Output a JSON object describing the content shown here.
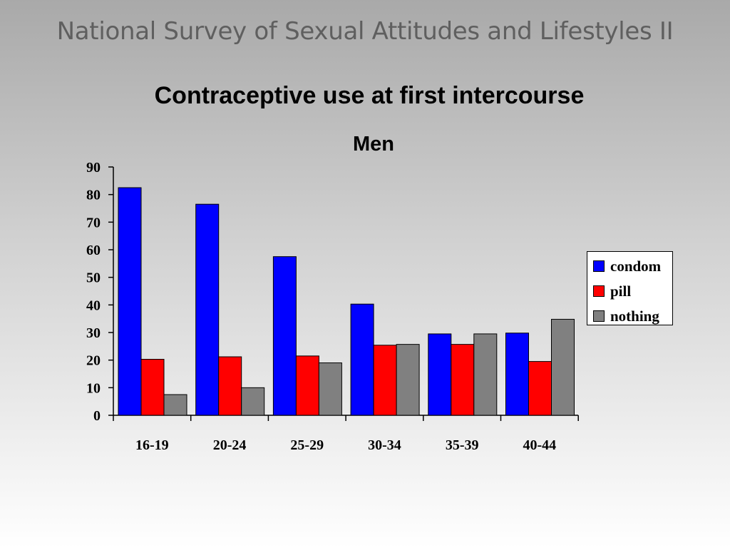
{
  "slide": {
    "title": "National Survey of Sexual Attitudes and Lifestyles II"
  },
  "chart_data": {
    "type": "bar",
    "title": "Contraceptive use at first intercourse",
    "subtitle": "Men",
    "xlabel": "",
    "ylabel": "",
    "categories": [
      "16-19",
      "20-24",
      "25-29",
      "30-34",
      "35-39",
      "40-44"
    ],
    "series": [
      {
        "name": "condom",
        "color": "#0000ff",
        "values": [
          82.5,
          76.5,
          57.5,
          40.3,
          29.5,
          29.8
        ]
      },
      {
        "name": "pill",
        "color": "#ff0000",
        "values": [
          20.3,
          21.2,
          21.5,
          25.4,
          25.7,
          19.5
        ]
      },
      {
        "name": "nothing",
        "color": "#808080",
        "values": [
          7.5,
          10.0,
          19.0,
          25.7,
          29.5,
          34.8
        ]
      }
    ],
    "ylim": [
      0,
      90
    ],
    "yticks": [
      0,
      10,
      20,
      30,
      40,
      50,
      60,
      70,
      80,
      90
    ],
    "grid": false,
    "legend_position": "right"
  }
}
